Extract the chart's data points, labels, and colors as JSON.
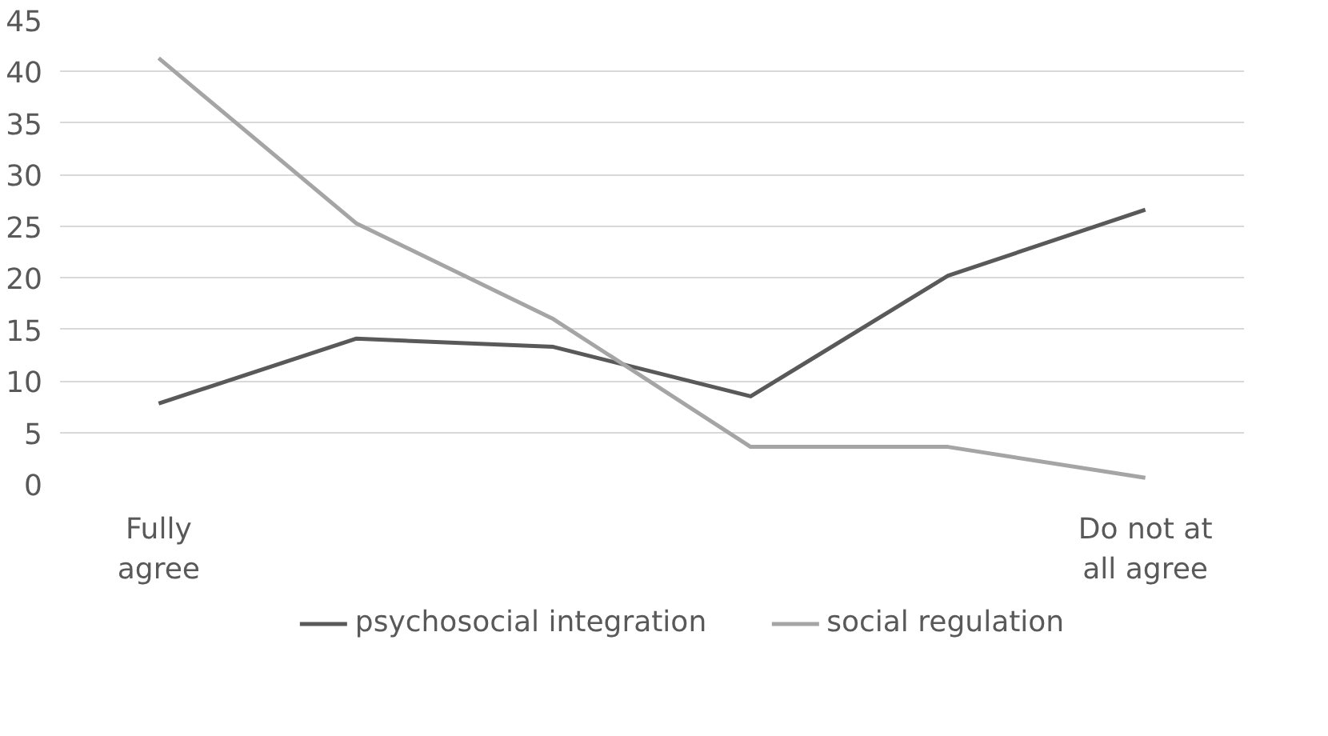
{
  "chart_data": {
    "type": "line",
    "categories": [
      "Fully\nagree",
      null,
      null,
      null,
      null,
      "Do not at\nall agree"
    ],
    "series": [
      {
        "name": "psychosocial integration",
        "color": "#595959",
        "values": [
          7.8,
          14.1,
          13.3,
          8.5,
          20.2,
          26.6
        ]
      },
      {
        "name": "social regulation",
        "color": "#a5a5a5",
        "values": [
          41.3,
          25.3,
          16.0,
          3.6,
          3.6,
          0.6
        ]
      }
    ],
    "ylim": [
      0,
      45
    ],
    "yticks": [
      0,
      5,
      10,
      15,
      20,
      25,
      30,
      35,
      40,
      45
    ],
    "grid": "y",
    "legend": "bottom",
    "marker": "none",
    "line_style": "solid"
  }
}
